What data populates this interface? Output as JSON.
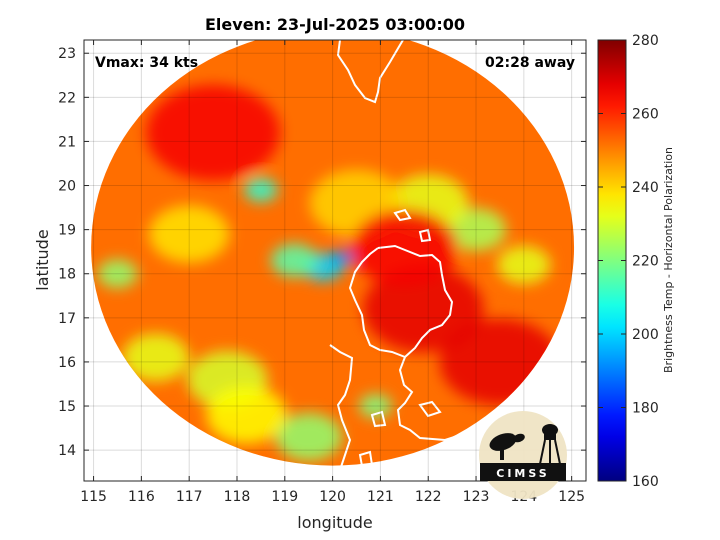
{
  "chart_data": {
    "type": "heatmap",
    "title": "Eleven: 23-Jul-2025 03:00:00",
    "xlabel": "longitude",
    "ylabel": "latitude",
    "xlim": [
      114.8,
      125.3
    ],
    "ylim": [
      13.3,
      23.3
    ],
    "xticks": [
      "115",
      "116",
      "117",
      "118",
      "119",
      "120",
      "121",
      "122",
      "123",
      "124",
      "125"
    ],
    "yticks": [
      "14",
      "15",
      "16",
      "17",
      "18",
      "19",
      "20",
      "21",
      "22",
      "23"
    ],
    "grid": true,
    "annotations": {
      "vmax": "Vmax: 34 kts",
      "time_away": "02:28 away"
    },
    "colorbar": {
      "label": "Brightness Temp - Horizontal Polarization",
      "range": [
        160,
        280
      ],
      "ticks": [
        "160",
        "180",
        "200",
        "220",
        "240",
        "260",
        "280"
      ],
      "colormap": "jet"
    },
    "swath": {
      "center": [
        120.0,
        18.6
      ],
      "radius_lon": 5.05,
      "radius_lat": 4.95
    },
    "logo": "CIMSS",
    "features": [
      {
        "lon": 120.2,
        "lat": 18.35,
        "value": 185,
        "spread": 0.18
      },
      {
        "lon": 119.8,
        "lat": 18.15,
        "value": 200,
        "spread": 0.3
      },
      {
        "lon": 119.2,
        "lat": 18.3,
        "value": 215,
        "spread": 0.35
      },
      {
        "lon": 118.5,
        "lat": 19.9,
        "value": 210,
        "spread": 0.25
      },
      {
        "lon": 123.0,
        "lat": 19.0,
        "value": 225,
        "spread": 0.45
      },
      {
        "lon": 122.0,
        "lat": 19.6,
        "value": 232,
        "spread": 0.6
      },
      {
        "lon": 115.5,
        "lat": 18.0,
        "value": 222,
        "spread": 0.3
      },
      {
        "lon": 119.5,
        "lat": 14.3,
        "value": 222,
        "spread": 0.5
      },
      {
        "lon": 120.9,
        "lat": 15.0,
        "value": 220,
        "spread": 0.25
      },
      {
        "lon": 116.3,
        "lat": 16.1,
        "value": 232,
        "spread": 0.5
      },
      {
        "lon": 117.8,
        "lat": 15.6,
        "value": 230,
        "spread": 0.6
      },
      {
        "lon": 118.2,
        "lat": 14.8,
        "value": 235,
        "spread": 0.6
      },
      {
        "lon": 117.0,
        "lat": 18.9,
        "value": 238,
        "spread": 0.6
      },
      {
        "lon": 120.5,
        "lat": 19.6,
        "value": 240,
        "spread": 0.7
      },
      {
        "lon": 124.0,
        "lat": 18.2,
        "value": 232,
        "spread": 0.4
      },
      {
        "lon": 121.9,
        "lat": 17.2,
        "value": 268,
        "spread": 0.9
      },
      {
        "lon": 121.5,
        "lat": 18.6,
        "value": 266,
        "spread": 0.8
      },
      {
        "lon": 123.5,
        "lat": 16.0,
        "value": 268,
        "spread": 0.9
      },
      {
        "lon": 117.5,
        "lat": 21.2,
        "value": 266,
        "spread": 1.0
      }
    ]
  }
}
